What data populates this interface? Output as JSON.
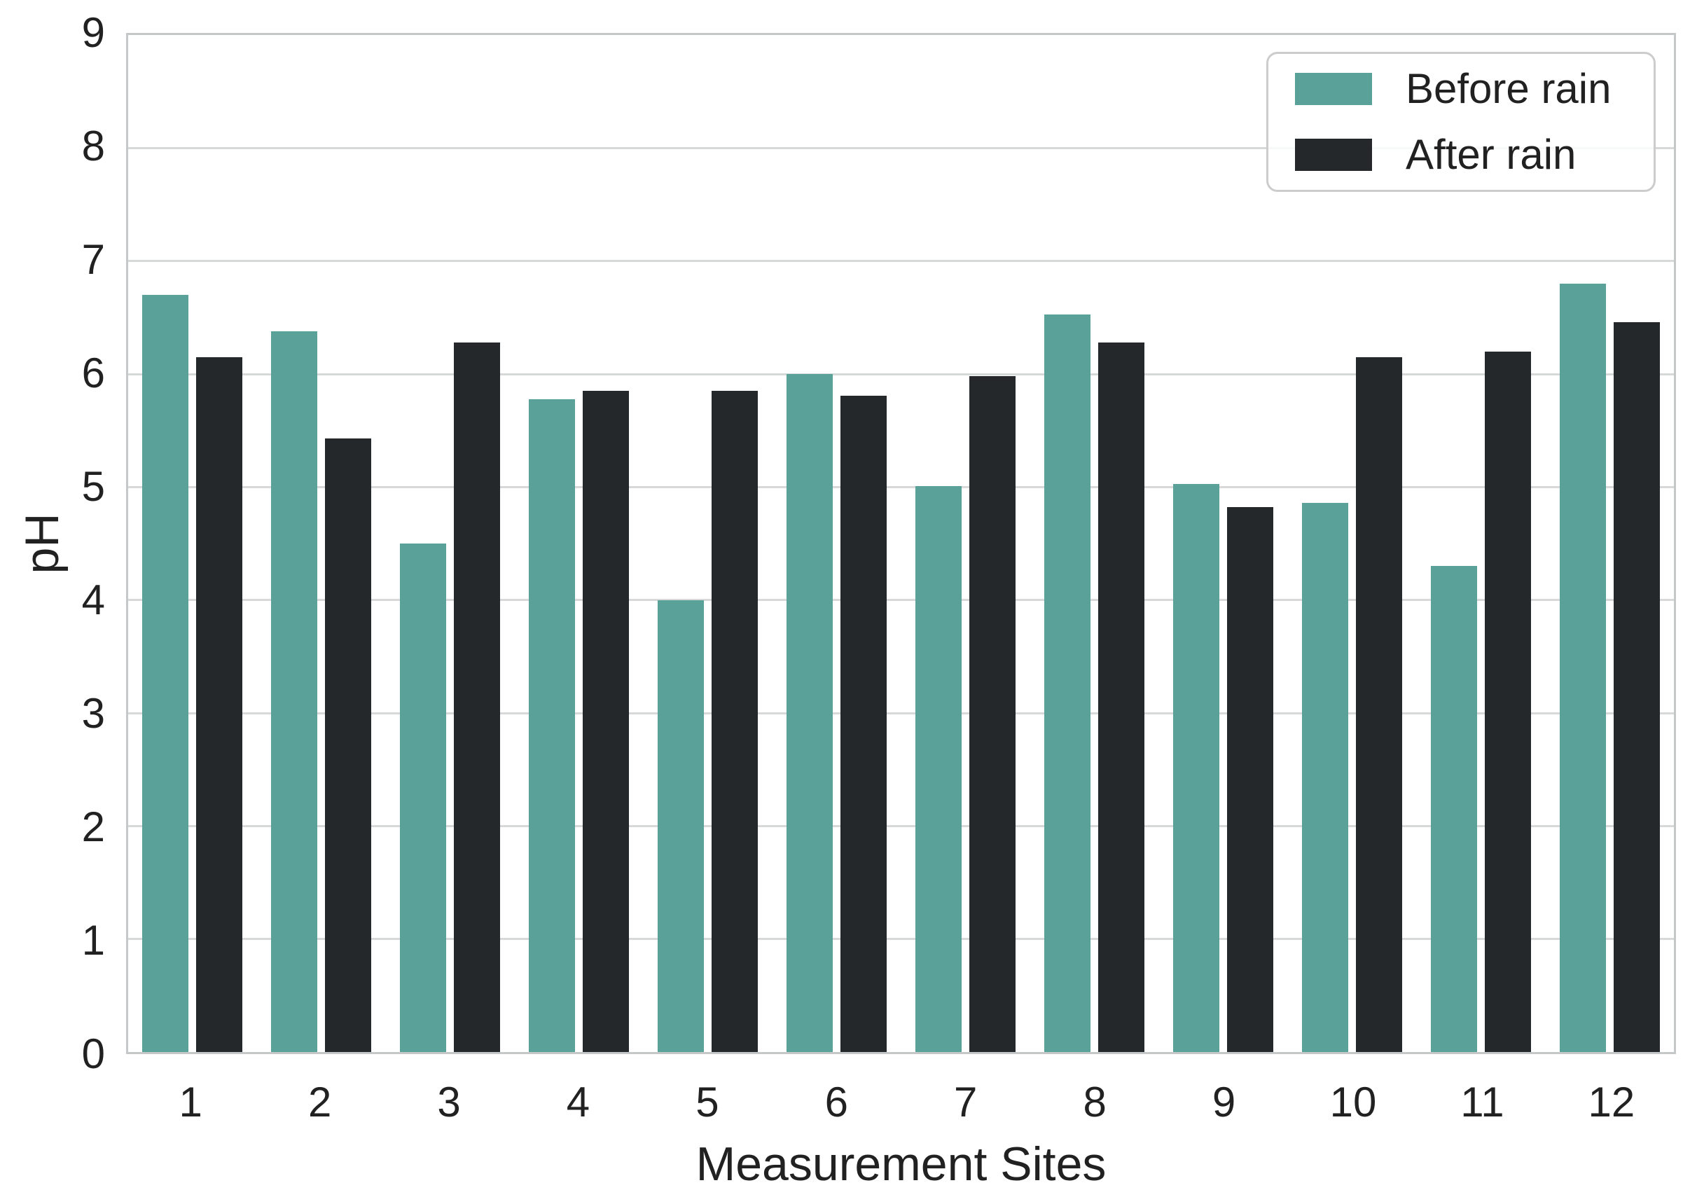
{
  "chart_data": {
    "type": "bar",
    "title": "",
    "xlabel": "Measurement Sites",
    "ylabel": "pH",
    "categories": [
      "1",
      "2",
      "3",
      "4",
      "5",
      "6",
      "7",
      "8",
      "9",
      "10",
      "11",
      "12"
    ],
    "series": [
      {
        "name": "Before rain",
        "color": "#5AA199",
        "values": [
          6.7,
          6.38,
          4.5,
          5.78,
          4.0,
          6.0,
          5.01,
          6.53,
          5.03,
          4.86,
          4.3,
          6.8
        ]
      },
      {
        "name": "After rain",
        "color": "#24282A",
        "values": [
          6.15,
          5.43,
          6.28,
          5.85,
          5.85,
          5.81,
          5.98,
          6.28,
          4.82,
          6.15,
          6.2,
          6.46
        ]
      }
    ],
    "ylim": [
      0,
      9
    ],
    "yticks": [
      0,
      1,
      2,
      3,
      4,
      5,
      6,
      7,
      8,
      9
    ],
    "grid": true,
    "grid_color": "#d7d9d9",
    "spine_color": "#c5c8c9",
    "legend_position": "upper right"
  }
}
